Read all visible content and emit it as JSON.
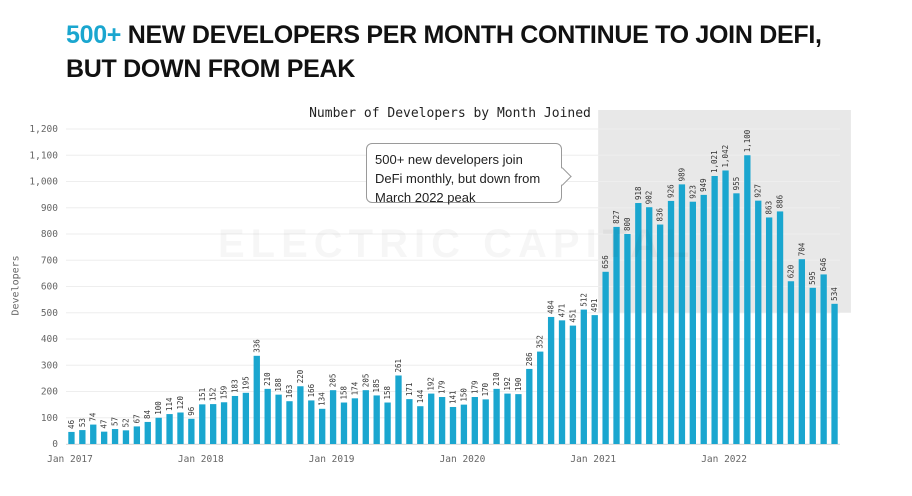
{
  "headline": {
    "accent": "500+",
    "line1_rest": " NEW DEVELOPERS PER MONTH CONTINUE TO JOIN DEFI,",
    "line2": "BUT DOWN FROM PEAK"
  },
  "watermark": "ELECTRIC CAPITAL",
  "annotation": {
    "text": "500+ new developers join DeFi monthly, but down from March 2022 peak"
  },
  "colors": {
    "bar": "#1aa6cf",
    "highlight": "#e8e8e8",
    "accent": "#1aa6cf"
  },
  "chart_data": {
    "type": "bar",
    "title": "Number of Developers by Month Joined",
    "ylabel": "Developers",
    "xlabel": "",
    "ylim": [
      0,
      1200
    ],
    "yticks": [
      0,
      100,
      200,
      300,
      400,
      500,
      600,
      700,
      800,
      900,
      1000,
      1100,
      1200
    ],
    "ytick_labels": [
      "0",
      "100",
      "200",
      "300",
      "400",
      "500",
      "600",
      "700",
      "800",
      "900",
      "1,000",
      "1,100",
      "1,200"
    ],
    "xtick_labels": [
      {
        "index": 0,
        "label": "Jan 2017"
      },
      {
        "index": 12,
        "label": "Jan 2018"
      },
      {
        "index": 24,
        "label": "Jan 2019"
      },
      {
        "index": 36,
        "label": "Jan 2020"
      },
      {
        "index": 48,
        "label": "Jan 2021"
      },
      {
        "index": 60,
        "label": "Jan 2022"
      }
    ],
    "highlight_range": {
      "from_index": 49,
      "to_index": 71
    },
    "grid": "horizontal",
    "values": [
      46,
      53,
      74,
      47,
      57,
      52,
      67,
      84,
      100,
      114,
      120,
      96,
      151,
      152,
      159,
      183,
      195,
      336,
      210,
      188,
      163,
      220,
      166,
      134,
      205,
      158,
      174,
      205,
      185,
      158,
      261,
      171,
      144,
      192,
      179,
      141,
      150,
      179,
      170,
      210,
      192,
      190,
      286,
      352,
      484,
      471,
      451,
      512,
      491,
      656,
      827,
      800,
      918,
      902,
      836,
      926,
      989,
      923,
      949,
      1021,
      1042,
      955,
      1100,
      927,
      863,
      886,
      620,
      704,
      595,
      646,
      534
    ],
    "labels": [
      "46",
      "53",
      "74",
      "47",
      "57",
      "52",
      "67",
      "84",
      "100",
      "114",
      "120",
      "96",
      "151",
      "152",
      "159",
      "183",
      "195",
      "336",
      "210",
      "188",
      "163",
      "220",
      "166",
      "134",
      "205",
      "158",
      "174",
      "205",
      "185",
      "158",
      "261",
      "171",
      "144",
      "192",
      "179",
      "141",
      "150",
      "179",
      "170",
      "210",
      "192",
      "190",
      "286",
      "352",
      "484",
      "471",
      "451",
      "512",
      "491",
      "656",
      "827",
      "800",
      "918",
      "902",
      "836",
      "926",
      "989",
      "923",
      "949",
      "1,021",
      "1,042",
      "955",
      "1,100",
      "927",
      "863",
      "886",
      "620",
      "704",
      "595",
      "646",
      "534"
    ]
  }
}
